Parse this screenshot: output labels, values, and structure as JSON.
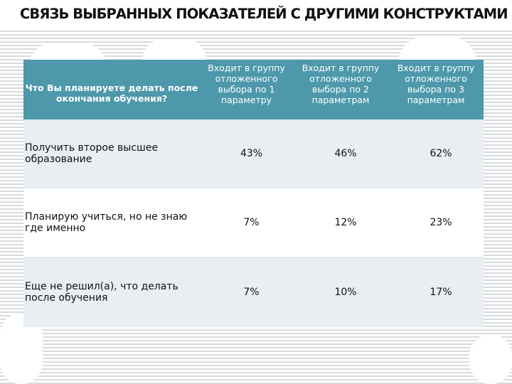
{
  "title": "СВЯЗЬ ВЫБРАННЫХ ПОКАЗАТЕЛЕЙ С ДРУГИМИ КОНСТРУКТАМИ",
  "table": {
    "headers": [
      "Что Вы планируете делать после окончания обучения?",
      "Входит в группу отложенного выбора по 1 параметру",
      "Входит в группу отложенного выбора по 2 параметрам",
      "Входит в группу отложенного выбора по 3 параметрам"
    ],
    "rows": [
      {
        "label": "Получить второе высшее образование",
        "values": [
          "43%",
          "46%",
          "62%"
        ]
      },
      {
        "label": "Планирую учиться, но не знаю где именно",
        "values": [
          "7%",
          "12%",
          "23%"
        ]
      },
      {
        "label": "Еще не решил(а), что делать после обучения",
        "values": [
          "7%",
          "10%",
          "17%"
        ]
      }
    ]
  },
  "colors": {
    "header_bg": "#4d98ab",
    "header_text": "#ffffff",
    "row_shade": "#e8eef1",
    "background_stripes": "#8c969e"
  }
}
